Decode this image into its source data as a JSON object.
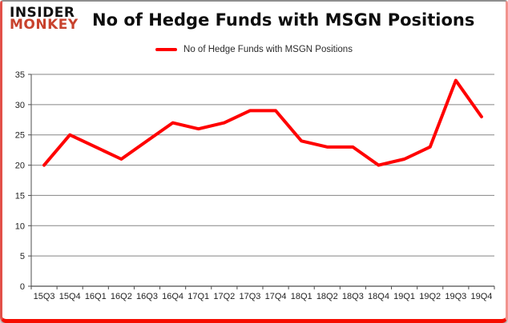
{
  "header": {
    "logo_line1": "INSIDER",
    "logo_line2": "MONKEY",
    "title": "No of Hedge Funds with MSGN Positions"
  },
  "legend": {
    "label": "No of Hedge Funds with MSGN Positions",
    "swatch_color": "#ff0000"
  },
  "chart_data": {
    "type": "line",
    "title": "No of Hedge Funds with MSGN Positions",
    "categories": [
      "15Q3",
      "15Q4",
      "16Q1",
      "16Q2",
      "16Q3",
      "16Q4",
      "17Q1",
      "17Q2",
      "17Q3",
      "17Q4",
      "18Q1",
      "18Q2",
      "18Q3",
      "18Q4",
      "19Q1",
      "19Q2",
      "19Q3",
      "19Q4"
    ],
    "series": [
      {
        "name": "No of Hedge Funds with MSGN Positions",
        "color": "#ff0000",
        "values": [
          20,
          25,
          23,
          21,
          24,
          27,
          26,
          27,
          29,
          29,
          24,
          23,
          23,
          20,
          21,
          23,
          34,
          28
        ]
      }
    ],
    "xlabel": "",
    "ylabel": "",
    "ylim": [
      0,
      35
    ],
    "ytick_step": 5,
    "grid": true,
    "legend_position": "top"
  },
  "colors": {
    "line": "#ff0000",
    "gridline": "#858585",
    "axis": "#4d4d4d",
    "tick_label": "#1f1f1f",
    "logo_black": "#111111",
    "logo_red": "#c8422d",
    "frame_red": "#f60d00"
  }
}
